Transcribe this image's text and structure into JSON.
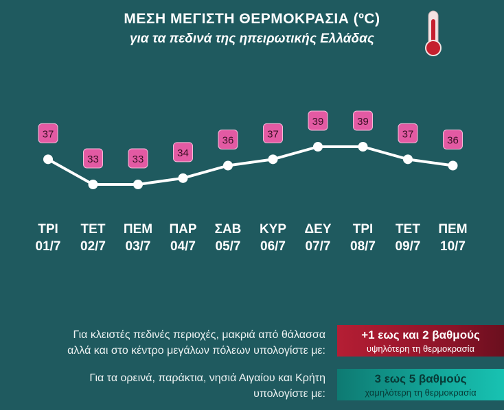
{
  "title": {
    "line1": "ΜΕΣΗ ΜΕΓΙΣΤΗ ΘΕΡΜΟΚΡΑΣΙΑ (ºC)",
    "line2": "για τα πεδινά της ηπειρωτικής Ελλάδας"
  },
  "chart_data": {
    "type": "line",
    "categories": [
      "ΤΡΙ 01/7",
      "ΤΕΤ 02/7",
      "ΠΕΜ 03/7",
      "ΠΑΡ 04/7",
      "ΣΑΒ 05/7",
      "ΚΥΡ 06/7",
      "ΔΕΥ 07/7",
      "ΤΡΙ 08/7",
      "ΤΕΤ 09/7",
      "ΠΕΜ 10/7"
    ],
    "days": [
      "ΤΡΙ",
      "ΤΕΤ",
      "ΠΕΜ",
      "ΠΑΡ",
      "ΣΑΒ",
      "ΚΥΡ",
      "ΔΕΥ",
      "ΤΡΙ",
      "ΤΕΤ",
      "ΠΕΜ"
    ],
    "dates": [
      "01/7",
      "02/7",
      "03/7",
      "04/7",
      "05/7",
      "06/7",
      "07/7",
      "08/7",
      "09/7",
      "10/7"
    ],
    "values": [
      37,
      33,
      33,
      34,
      36,
      37,
      39,
      39,
      37,
      36
    ],
    "data_labels": true,
    "line_color": "#ffffff",
    "label_color": "#e35aa3"
  },
  "notes": {
    "hot_line1": "Για κλειστές πεδινές περιοχές, μακριά από θάλασσα",
    "hot_line2": "αλλά και στο κέντρο μεγάλων πόλεων υπολογίστε με:",
    "hot_big": "+1 εως και 2 βαθμούς",
    "hot_small": "υψηλότερη τη θερμοκρασία",
    "cool_line1": "Για τα ορεινά, παράκτια, νησιά Αιγαίου και Κρήτη",
    "cool_line2": "υπολογίστε με:",
    "cool_big": "3 εως 5 βαθμούς",
    "cool_small": "χαμηλότερη τη θερμοκρασία"
  },
  "colors": {
    "background": "#1f5a5f",
    "hot_box": "#a01a30",
    "cool_box": "#13a79a"
  },
  "icons": {
    "thermometer": "thermometer-icon"
  }
}
